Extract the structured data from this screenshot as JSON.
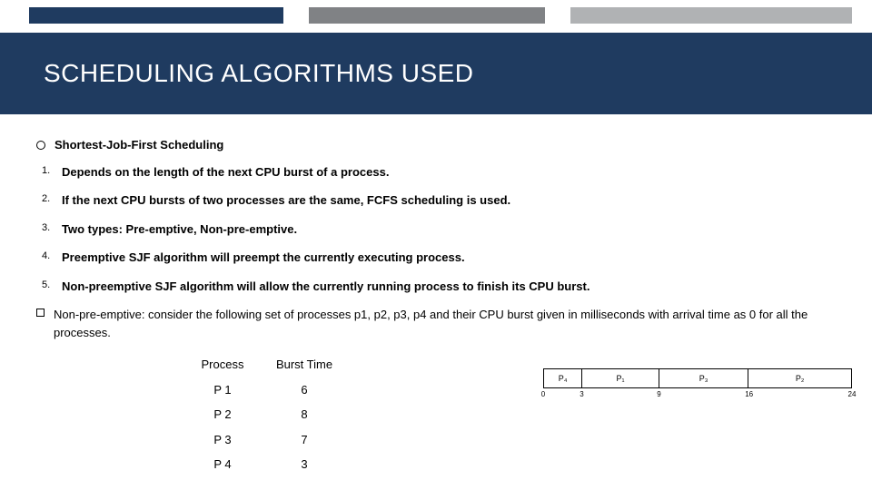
{
  "colors": {
    "bar1": "#1f3b60",
    "bar2": "#808285",
    "bar3": "#b0b2b4",
    "band": "#1f3b60"
  },
  "title": "SCHEDULING ALGORITHMS USED",
  "heading": "Shortest-Job-First Scheduling",
  "items": {
    "n1": "1.",
    "t1": "Depends on the length of the next CPU burst of a process.",
    "n2": "2.",
    "t2": "If the next CPU bursts of two processes are the same, FCFS scheduling is used.",
    "n3": "3.",
    "t3": "Two types: Pre-emptive, Non-pre-emptive.",
    "n4": "4.",
    "t4": "Preemptive SJF algorithm will preempt the currently executing process.",
    "n5": "5.",
    "t5": "Non-preemptive SJF algorithm will allow the currently running process to finish its CPU burst."
  },
  "note": "Non-pre-emptive: consider the following set of processes p1, p2, p3, p4 and their CPU burst given in milliseconds with arrival time as 0 for all the processes.",
  "table": {
    "h1": "Process",
    "h2": "Burst Time",
    "r1c1": "P 1",
    "r1c2": "6",
    "r2c1": "P 2",
    "r2c2": "8",
    "r3c1": "P 3",
    "r3c2": "7",
    "r4c1": "P 4",
    "r4c2": "3"
  },
  "gantt": {
    "total": 24,
    "segments": [
      {
        "label": "P₄",
        "w": 3
      },
      {
        "label": "P₁",
        "w": 6
      },
      {
        "label": "P₃",
        "w": 7
      },
      {
        "label": "P₂",
        "w": 8
      }
    ],
    "ticks": [
      "0",
      "3",
      "9",
      "16",
      "24"
    ],
    "tick_pos": [
      0,
      3,
      9,
      16,
      24
    ]
  }
}
